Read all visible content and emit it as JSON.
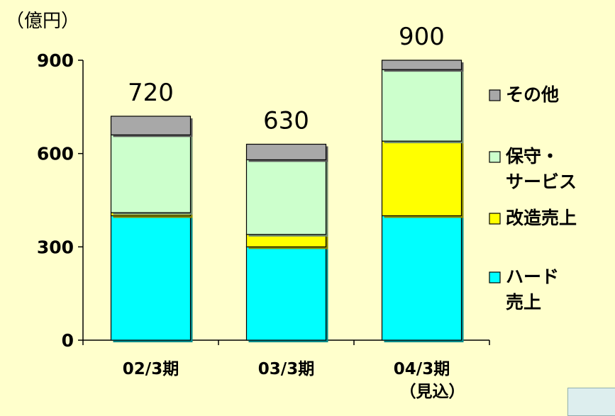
{
  "chart_data": {
    "type": "bar",
    "stacked": true,
    "unit_label": "（億円）",
    "categories": [
      "02/3期",
      "03/3期",
      "04/3期"
    ],
    "category_sublabels": [
      "",
      "",
      "（見込）"
    ],
    "series": [
      {
        "name": "ハード売上",
        "legend_lines": [
          "ハード",
          "売上"
        ],
        "color": "#00FFFF",
        "values": [
          400,
          300,
          400
        ]
      },
      {
        "name": "改造売上",
        "legend_lines": [
          "改造売上"
        ],
        "color": "#FFFF00",
        "values": [
          10,
          40,
          240
        ]
      },
      {
        "name": "保守・サービス",
        "legend_lines": [
          "保守・",
          "サービス"
        ],
        "color": "#CCFFCC",
        "values": [
          250,
          240,
          230
        ]
      },
      {
        "name": "その他",
        "legend_lines": [
          "その他"
        ],
        "color": "#A8A8A8",
        "values": [
          60,
          50,
          30
        ]
      }
    ],
    "totals": [
      "720",
      "630",
      "900"
    ],
    "yticks": [
      "0",
      "300",
      "600",
      "900"
    ],
    "ylim": [
      0,
      900
    ],
    "grid": false,
    "legend_position": "right"
  }
}
